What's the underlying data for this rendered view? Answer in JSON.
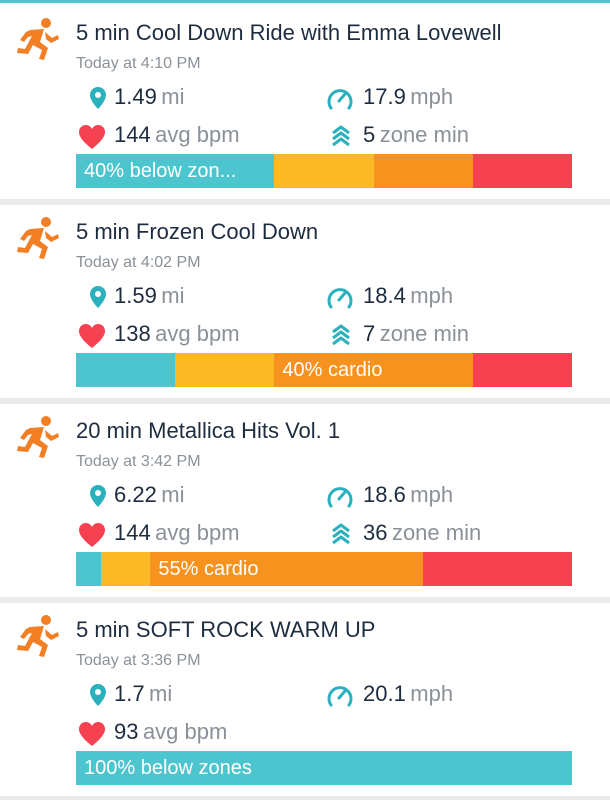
{
  "activities": [
    {
      "title": "5 min Cool Down Ride with Emma Lovewell",
      "time": "Today at 4:10 PM",
      "distance": "1.49",
      "distance_unit": "mi",
      "speed": "17.9",
      "speed_unit": "mph",
      "heart_rate": "144",
      "heart_rate_unit": "avg bpm",
      "zone_minutes": "5",
      "zone_unit": "zone min",
      "zone_label": "40% below zon...",
      "zones": [
        {
          "color": "#4cc5cf",
          "share": 40
        },
        {
          "color": "#fbb926",
          "share": 20
        },
        {
          "color": "#f8921e",
          "share": 20
        },
        {
          "color": "#f64151",
          "share": 20
        }
      ]
    },
    {
      "title": "5 min Frozen Cool Down",
      "time": "Today at 4:02 PM",
      "distance": "1.59",
      "distance_unit": "mi",
      "speed": "18.4",
      "speed_unit": "mph",
      "heart_rate": "138",
      "heart_rate_unit": "avg bpm",
      "zone_minutes": "7",
      "zone_unit": "zone min",
      "zone_label": "40% cardio",
      "zones": [
        {
          "color": "#4cc5cf",
          "share": 20
        },
        {
          "color": "#fbb926",
          "share": 20
        },
        {
          "color": "#f8921e",
          "share": 40
        },
        {
          "color": "#f64151",
          "share": 20
        }
      ]
    },
    {
      "title": "20 min Metallica Hits Vol. 1",
      "time": "Today at 3:42 PM",
      "distance": "6.22",
      "distance_unit": "mi",
      "speed": "18.6",
      "speed_unit": "mph",
      "heart_rate": "144",
      "heart_rate_unit": "avg bpm",
      "zone_minutes": "36",
      "zone_unit": "zone min",
      "zone_label": "55% cardio",
      "zones": [
        {
          "color": "#4cc5cf",
          "share": 5
        },
        {
          "color": "#fbb926",
          "share": 10
        },
        {
          "color": "#f8921e",
          "share": 55
        },
        {
          "color": "#f64151",
          "share": 30
        }
      ]
    },
    {
      "title": "5 min SOFT ROCK WARM UP",
      "time": "Today at 3:36 PM",
      "distance": "1.7",
      "distance_unit": "mi",
      "speed": "20.1",
      "speed_unit": "mph",
      "heart_rate": "93",
      "heart_rate_unit": "avg bpm",
      "zone_label": "100% below zones",
      "zones": [
        {
          "color": "#4cc5cf",
          "share": 100
        }
      ]
    }
  ]
}
